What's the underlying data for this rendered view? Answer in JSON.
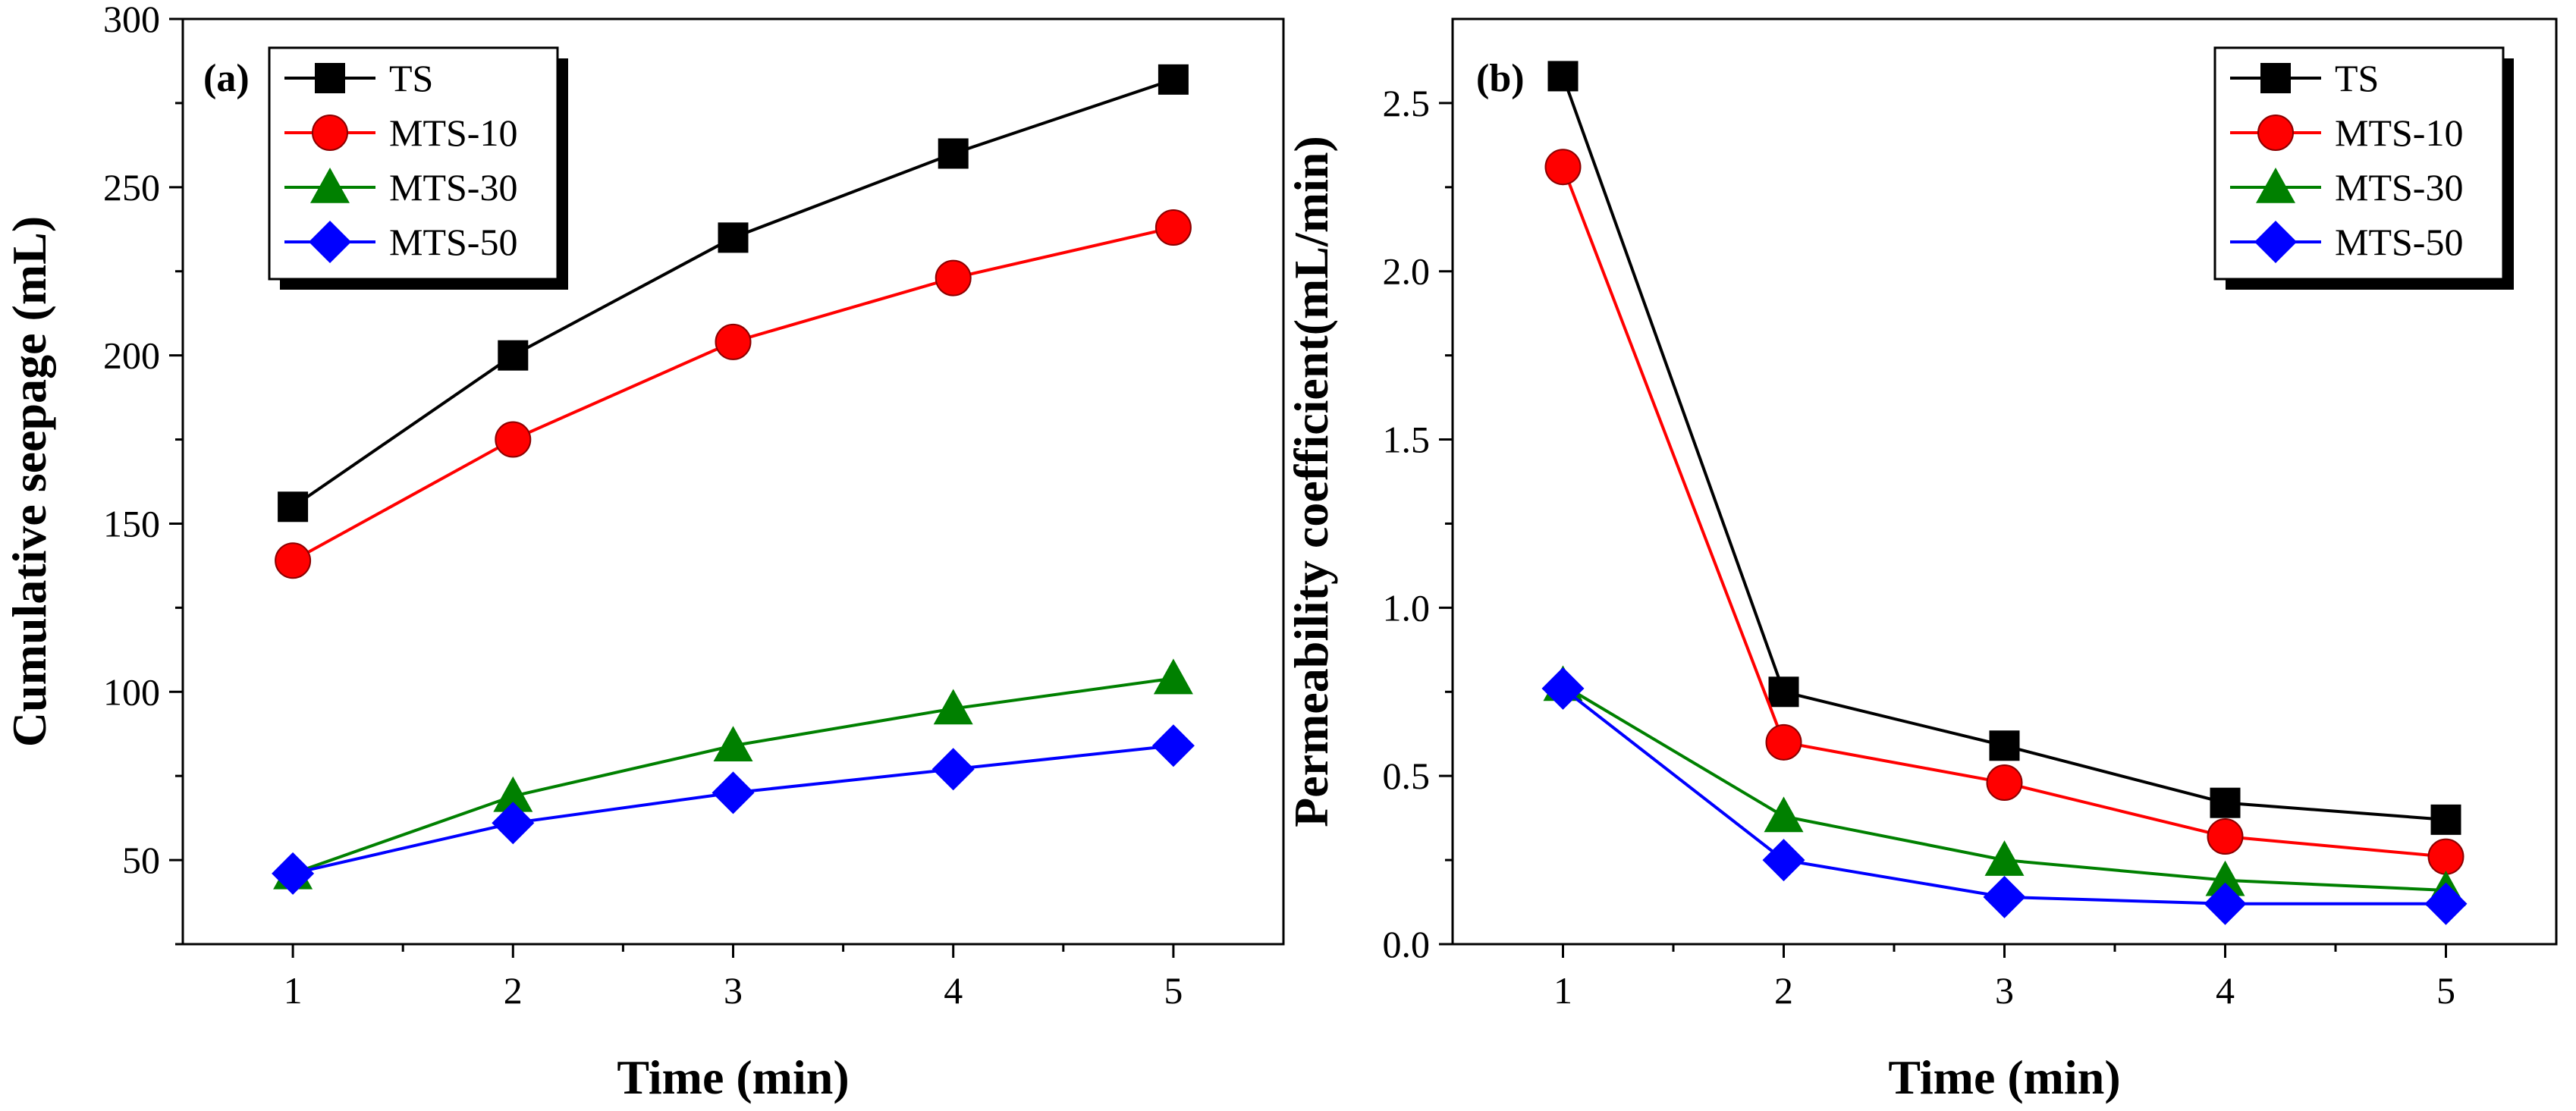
{
  "chart_data": [
    {
      "type": "line",
      "panel_label": "(a)",
      "xlabel": "Time (min)",
      "ylabel": "Cumulative seepage (mL)",
      "xlim": [
        0.5,
        5.5
      ],
      "ylim": [
        25,
        300
      ],
      "xticks": [
        1,
        2,
        3,
        4,
        5
      ],
      "yticks": [
        50,
        100,
        150,
        200,
        250,
        300
      ],
      "x": [
        1,
        2,
        3,
        4,
        5
      ],
      "legend_position": "top-left",
      "series": [
        {
          "name": "TS",
          "color": "#000000",
          "marker": "square",
          "values": [
            155,
            200,
            235,
            260,
            282
          ]
        },
        {
          "name": "MTS-10",
          "color": "#ff0000",
          "marker": "circle",
          "values": [
            139,
            175,
            204,
            223,
            238
          ]
        },
        {
          "name": "MTS-30",
          "color": "#008000",
          "marker": "triangle",
          "values": [
            46,
            69,
            84,
            95,
            104
          ]
        },
        {
          "name": "MTS-50",
          "color": "#0000ff",
          "marker": "diamond",
          "values": [
            46,
            61,
            70,
            77,
            84
          ]
        }
      ]
    },
    {
      "type": "line",
      "panel_label": "(b)",
      "xlabel": "Time (min)",
      "ylabel": "Permeability coefficient(mL/min)",
      "xlim": [
        0.5,
        5.5
      ],
      "ylim": [
        0,
        2.75
      ],
      "xticks": [
        1,
        2,
        3,
        4,
        5
      ],
      "yticks": [
        0.0,
        0.5,
        1.0,
        1.5,
        2.0,
        2.5
      ],
      "x": [
        1,
        2,
        3,
        4,
        5
      ],
      "legend_position": "top-right",
      "series": [
        {
          "name": "TS",
          "color": "#000000",
          "marker": "square",
          "values": [
            2.58,
            0.75,
            0.59,
            0.42,
            0.37
          ]
        },
        {
          "name": "MTS-10",
          "color": "#ff0000",
          "marker": "circle",
          "values": [
            2.31,
            0.6,
            0.48,
            0.32,
            0.26
          ]
        },
        {
          "name": "MTS-30",
          "color": "#008000",
          "marker": "triangle",
          "values": [
            0.77,
            0.38,
            0.25,
            0.19,
            0.16
          ]
        },
        {
          "name": "MTS-50",
          "color": "#0000ff",
          "marker": "diamond",
          "values": [
            0.76,
            0.25,
            0.14,
            0.12,
            0.12
          ]
        }
      ]
    }
  ]
}
